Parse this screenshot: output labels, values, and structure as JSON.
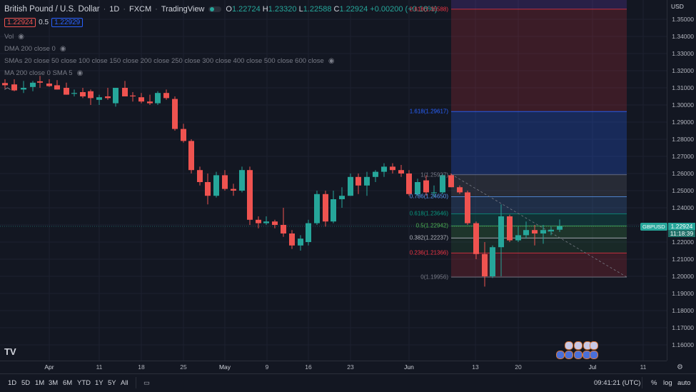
{
  "header": {
    "symbol_title": "British Pound / U.S. Dollar",
    "interval": "1D",
    "exchange": "FXCM",
    "provider": "TradingView",
    "ohlc": {
      "o_label": "O",
      "o": "1.22724",
      "h_label": "H",
      "h": "1.23320",
      "l_label": "L",
      "l": "1.22588",
      "c_label": "C",
      "c": "1.22924",
      "change": "+0.00200 (+0.16%)"
    },
    "bid": "1.22924",
    "spread": "0.5",
    "ask": "1.22929"
  },
  "indicators": [
    {
      "label": "Vol"
    },
    {
      "label": "DMA 200 close 0"
    },
    {
      "label": "SMAs 20 close 50 close 100 close 150 close 200 close 250 close 300 close 400 close 500 close 600 close"
    },
    {
      "label": "MA 200 close 0 SMA 5"
    }
  ],
  "yaxis": {
    "currency": "USD",
    "ticks": [
      "1.35000",
      "1.34000",
      "1.33000",
      "1.32000",
      "1.31000",
      "1.30000",
      "1.29000",
      "1.28000",
      "1.27000",
      "1.26000",
      "1.25000",
      "1.24000",
      "1.23000",
      "1.22000",
      "1.21000",
      "1.20000",
      "1.19000",
      "1.18000",
      "1.17000",
      "1.16000"
    ],
    "current_price": "1.22924",
    "countdown": "11:18:39",
    "symbol_tag": "GBPUSD"
  },
  "xaxis": {
    "ticks": [
      "Apr",
      "11",
      "18",
      "25",
      "May",
      "9",
      "16",
      "23",
      "Jun",
      "13",
      "20",
      "Jul",
      "11"
    ]
  },
  "fib": {
    "levels": [
      {
        "label": "2.618(1.35588)",
        "color": "#f23645"
      },
      {
        "label": "1.618(1.29617)",
        "color": "#2962ff"
      },
      {
        "label": "1(1.25927)",
        "color": "#787b86"
      },
      {
        "label": "0.786(1.24650)",
        "color": "#5b9cf6"
      },
      {
        "label": "0.618(1.23646)",
        "color": "#089981"
      },
      {
        "label": "0.5(1.22942)",
        "color": "#4caf50"
      },
      {
        "label": "0.382(1.22237)",
        "color": "#b2b5be"
      },
      {
        "label": "0.236(1.21366)",
        "color": "#f23645"
      },
      {
        "label": "0(1.19956)",
        "color": "#787b86"
      }
    ]
  },
  "bottom_bar": {
    "ranges": [
      "1D",
      "5D",
      "1M",
      "3M",
      "6M",
      "YTD",
      "1Y",
      "5Y",
      "All"
    ],
    "time": "09:41:21 (UTC)",
    "options": [
      "%",
      "log",
      "auto"
    ]
  },
  "colors": {
    "up": "#26a69a",
    "down": "#ef5350",
    "bg": "#131722"
  }
}
